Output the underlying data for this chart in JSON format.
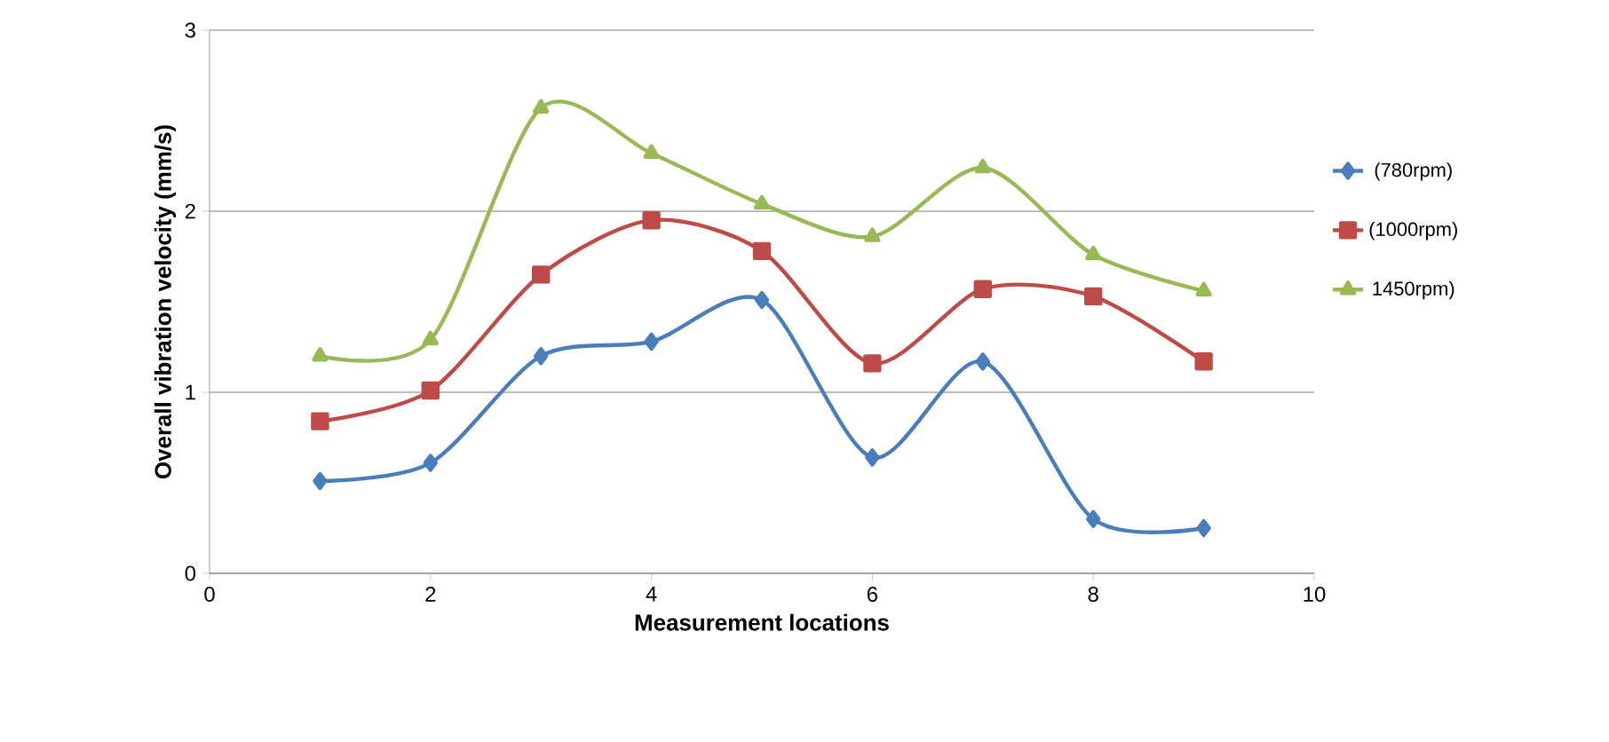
{
  "chart_data": {
    "type": "line",
    "xlabel": "Measurement locations",
    "ylabel": "Overall vibration velocity (mm/s)",
    "x": [
      1,
      2,
      3,
      4,
      5,
      6,
      7,
      8,
      9
    ],
    "series": [
      {
        "name": "(780rpm)",
        "color": "#4a7ebb",
        "marker": "diamond",
        "values": [
          0.51,
          0.61,
          1.2,
          1.28,
          1.51,
          0.64,
          1.17,
          0.3,
          0.25
        ]
      },
      {
        "name": "(1000rpm)",
        "color": "#be4b48",
        "marker": "square",
        "values": [
          0.84,
          1.01,
          1.65,
          1.95,
          1.78,
          1.16,
          1.57,
          1.53,
          1.17
        ]
      },
      {
        "name": "1450rpm)",
        "color": "#98b954",
        "marker": "triangle",
        "values": [
          1.2,
          1.29,
          2.57,
          2.32,
          2.04,
          1.86,
          2.24,
          1.76,
          1.56
        ]
      }
    ],
    "xlim": [
      0,
      10
    ],
    "ylim": [
      0,
      3
    ],
    "xticks": [
      0,
      2,
      4,
      6,
      8,
      10
    ],
    "yticks": [
      0,
      1,
      2,
      3
    ],
    "grid": "y",
    "legend": "right"
  }
}
